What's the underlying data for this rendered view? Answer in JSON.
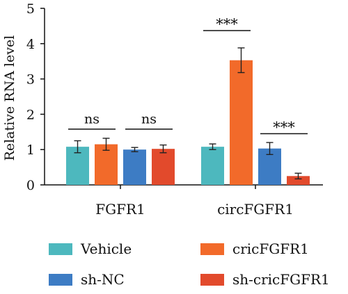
{
  "chart_data": {
    "type": "bar",
    "ylabel": "Relative RNA level",
    "ylim": [
      0,
      5
    ],
    "yticks": [
      0,
      1,
      2,
      3,
      4,
      5
    ],
    "categories": [
      "FGFR1",
      "circFGFR1"
    ],
    "series": [
      {
        "name": "Vehicle",
        "color": "#4DB8BE",
        "values": [
          1.08,
          1.08
        ],
        "errors": [
          0.17,
          0.08
        ]
      },
      {
        "name": "cricFGFR1",
        "color": "#F26A2A",
        "values": [
          1.15,
          3.53
        ],
        "errors": [
          0.17,
          0.35
        ]
      },
      {
        "name": "sh-NC",
        "color": "#3D7CC4",
        "values": [
          1.0,
          1.03
        ],
        "errors": [
          0.06,
          0.17
        ]
      },
      {
        "name": "sh-cricFGFR1",
        "color": "#E24A2C",
        "values": [
          1.02,
          0.25
        ],
        "errors": [
          0.11,
          0.08
        ]
      }
    ],
    "annotations": [
      {
        "text": "ns",
        "category": 0,
        "bars": [
          0,
          1
        ],
        "y": 1.58
      },
      {
        "text": "ns",
        "category": 0,
        "bars": [
          2,
          3
        ],
        "y": 1.58
      },
      {
        "text": "***",
        "category": 1,
        "bars": [
          0,
          1
        ],
        "y": 4.37
      },
      {
        "text": "***",
        "category": 1,
        "bars": [
          2,
          3
        ],
        "y": 1.45
      }
    ],
    "legend_position": "bottom",
    "grid": false
  }
}
